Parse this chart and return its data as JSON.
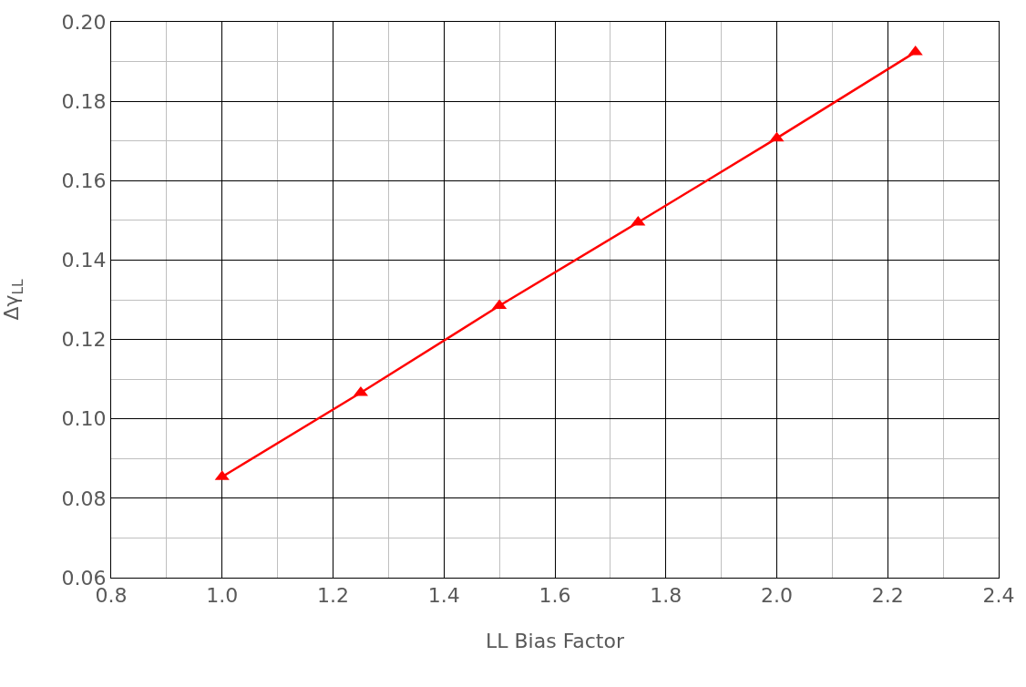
{
  "chart_data": {
    "type": "line",
    "xlabel": "LL Bias Factor",
    "ylabel": "Δγ$_{LL}$",
    "x": [
      1.0,
      1.25,
      1.5,
      1.75,
      2.0,
      2.25
    ],
    "series": [
      {
        "color": "#ff0000",
        "values": [
          0.0854,
          0.1066,
          0.1285,
          0.1495,
          0.1707,
          0.1924
        ]
      }
    ],
    "xlim": [
      0.8,
      2.4
    ],
    "xticks": [
      {
        "value": 0.8,
        "label": "0.8"
      },
      {
        "value": 1.0,
        "label": "1.0"
      },
      {
        "value": 1.2,
        "label": "1.2"
      },
      {
        "value": 1.4,
        "label": "1.4"
      },
      {
        "value": 1.6,
        "label": "1.6"
      },
      {
        "value": 1.8,
        "label": "1.8"
      },
      {
        "value": 2.0,
        "label": "2.0"
      },
      {
        "value": 2.2,
        "label": "2.2"
      },
      {
        "value": 2.4,
        "label": "2.4"
      }
    ],
    "ylim": [
      0.06,
      0.2
    ],
    "yticks": [
      {
        "value": 0.06,
        "label": "0.06"
      },
      {
        "value": 0.08,
        "label": "0.08"
      },
      {
        "value": 0.1,
        "label": "0.10"
      },
      {
        "value": 0.12,
        "label": "0.12"
      },
      {
        "value": 0.14,
        "label": "0.14"
      },
      {
        "value": 0.16,
        "label": "0.16"
      },
      {
        "value": 0.18,
        "label": "0.18"
      },
      {
        "value": 0.2,
        "label": "0.20"
      }
    ],
    "grid": true,
    "marker": "triangle",
    "line_style": "solid",
    "legend": false
  }
}
